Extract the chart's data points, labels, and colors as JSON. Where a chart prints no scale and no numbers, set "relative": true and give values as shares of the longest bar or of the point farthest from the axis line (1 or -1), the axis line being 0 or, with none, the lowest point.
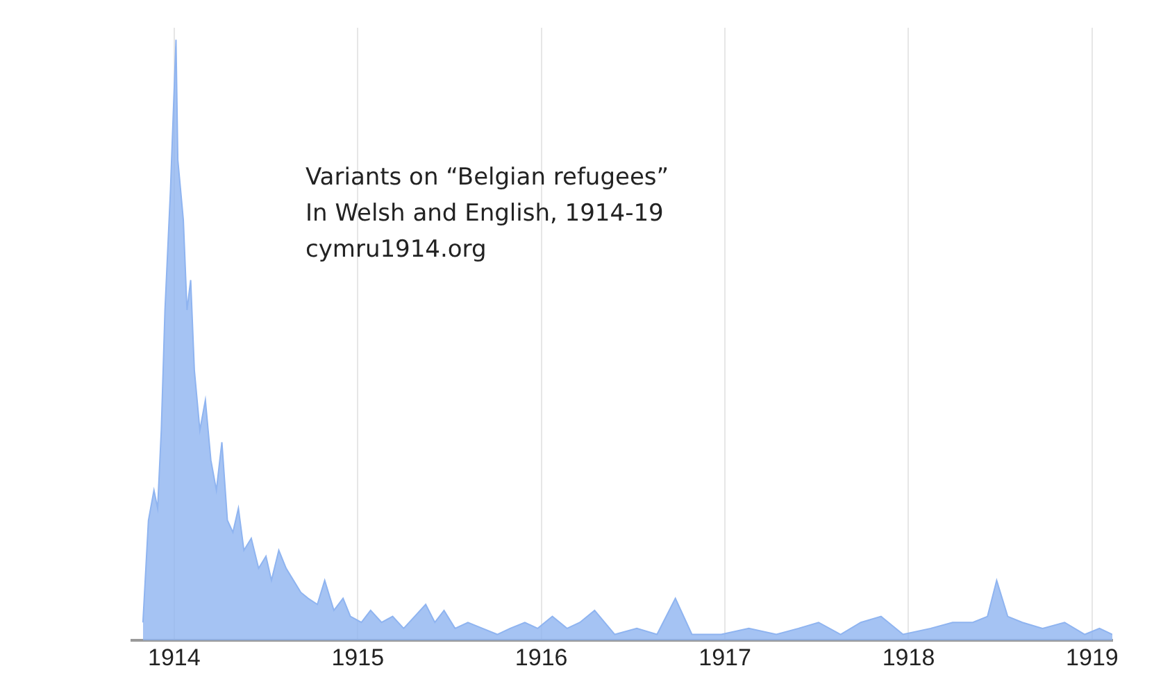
{
  "chart_data": {
    "type": "area",
    "relative": true,
    "x": [
      1913.83,
      1913.86,
      1913.89,
      1913.91,
      1913.93,
      1913.95,
      1913.98,
      1914.01,
      1914.02,
      1914.05,
      1914.07,
      1914.09,
      1914.11,
      1914.14,
      1914.17,
      1914.2,
      1914.23,
      1914.26,
      1914.29,
      1914.32,
      1914.35,
      1914.38,
      1914.42,
      1914.46,
      1914.5,
      1914.53,
      1914.57,
      1914.61,
      1914.65,
      1914.69,
      1914.73,
      1914.78,
      1914.82,
      1914.87,
      1914.92,
      1914.96,
      1915.02,
      1915.07,
      1915.13,
      1915.19,
      1915.25,
      1915.31,
      1915.37,
      1915.42,
      1915.47,
      1915.53,
      1915.6,
      1915.68,
      1915.76,
      1915.83,
      1915.91,
      1915.98,
      1916.06,
      1916.14,
      1916.21,
      1916.29,
      1916.4,
      1916.52,
      1916.63,
      1916.73,
      1916.82,
      1916.98,
      1917.13,
      1917.28,
      1917.4,
      1917.51,
      1917.63,
      1917.74,
      1917.85,
      1917.97,
      1918.12,
      1918.24,
      1918.35,
      1918.43,
      1918.48,
      1918.54,
      1918.62,
      1918.73,
      1918.85,
      1918.96,
      1919.04,
      1919.11
    ],
    "series": [
      {
        "color": "#8fb4f0",
        "values": [
          0.03,
          0.2,
          0.25,
          0.22,
          0.35,
          0.55,
          0.75,
          1,
          0.8,
          0.7,
          0.55,
          0.6,
          0.45,
          0.35,
          0.4,
          0.3,
          0.25,
          0.33,
          0.2,
          0.18,
          0.22,
          0.15,
          0.17,
          0.12,
          0.14,
          0.1,
          0.15,
          0.12,
          0.1,
          0.08,
          0.07,
          0.06,
          0.1,
          0.05,
          0.07,
          0.04,
          0.03,
          0.05,
          0.03,
          0.04,
          0.02,
          0.04,
          0.06,
          0.03,
          0.05,
          0.02,
          0.03,
          0.02,
          0.01,
          0.02,
          0.03,
          0.02,
          0.04,
          0.02,
          0.03,
          0.05,
          0.01,
          0.02,
          0.01,
          0.07,
          0.01,
          0.01,
          0.02,
          0.01,
          0.02,
          0.03,
          0.01,
          0.03,
          0.04,
          0.01,
          0.02,
          0.03,
          0.03,
          0.04,
          0.1,
          0.04,
          0.03,
          0.02,
          0.03,
          0.01,
          0.02,
          0.01
        ]
      }
    ],
    "xlim": [
      1913.77,
      1919.11
    ],
    "xticks": [
      1914,
      1915,
      1916,
      1917,
      1918,
      1919
    ],
    "grid": "x",
    "annotations": [
      "Variants on “Belgian refugees”",
      "In Welsh and English, 1914-19",
      "cymru1914.org"
    ]
  }
}
